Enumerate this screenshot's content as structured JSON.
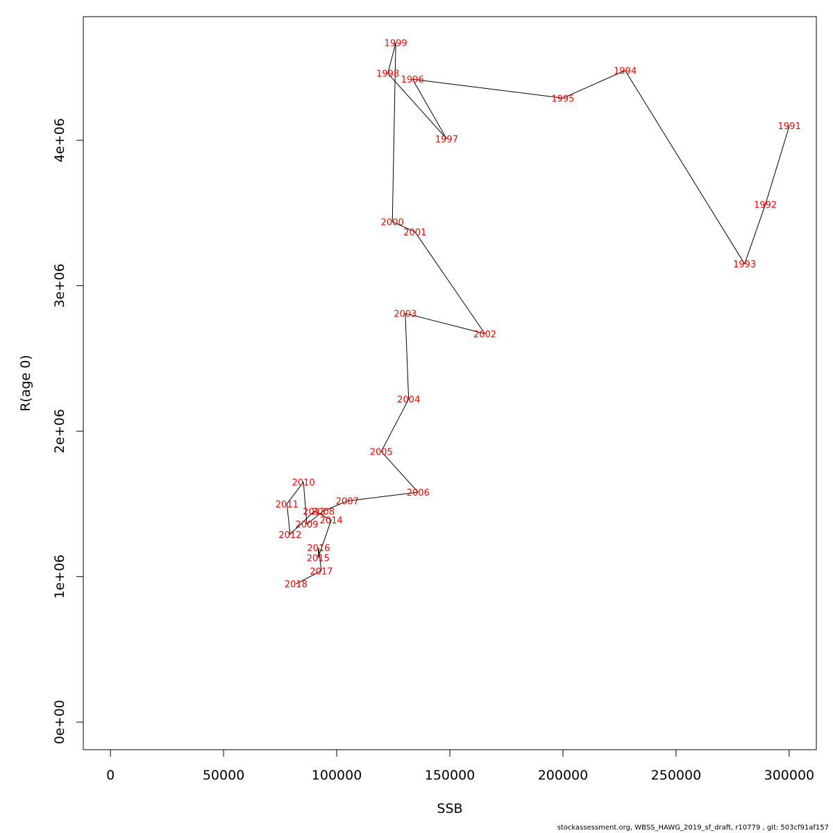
{
  "chart_data": {
    "type": "line",
    "title": "",
    "xlabel": "SSB",
    "ylabel": "R(age 0)",
    "xlim": [
      -12000,
      312000
    ],
    "ylim": [
      -190000,
      4850000
    ],
    "xticks": [
      0,
      50000,
      100000,
      150000,
      200000,
      250000,
      300000
    ],
    "xtick_labels": [
      "0",
      "50000",
      "100000",
      "150000",
      "200000",
      "250000",
      "300000"
    ],
    "yticks": [
      0,
      1000000,
      2000000,
      3000000,
      4000000
    ],
    "ytick_labels": [
      "0e+00",
      "1e+06",
      "2e+06",
      "3e+06",
      "4e+06"
    ],
    "grid": false,
    "line_color": "#000000",
    "label_color": "#ff0000",
    "points": [
      {
        "year": "1991",
        "x": 300100,
        "y": 4100000
      },
      {
        "year": "1992",
        "x": 289500,
        "y": 3560000
      },
      {
        "year": "1993",
        "x": 280300,
        "y": 3150000
      },
      {
        "year": "1994",
        "x": 227500,
        "y": 4480000
      },
      {
        "year": "1995",
        "x": 200000,
        "y": 4290000
      },
      {
        "year": "1996",
        "x": 133500,
        "y": 4420000
      },
      {
        "year": "1997",
        "x": 148600,
        "y": 4010000
      },
      {
        "year": "1998",
        "x": 122600,
        "y": 4460000
      },
      {
        "year": "1999",
        "x": 126100,
        "y": 4670000
      },
      {
        "year": "2000",
        "x": 124600,
        "y": 3440000
      },
      {
        "year": "2001",
        "x": 134600,
        "y": 3370000
      },
      {
        "year": "2002",
        "x": 165500,
        "y": 2670000
      },
      {
        "year": "2003",
        "x": 130300,
        "y": 2810000
      },
      {
        "year": "2004",
        "x": 131800,
        "y": 2220000
      },
      {
        "year": "2005",
        "x": 119700,
        "y": 1860000
      },
      {
        "year": "2006",
        "x": 136000,
        "y": 1580000
      },
      {
        "year": "2007",
        "x": 104700,
        "y": 1520000
      },
      {
        "year": "2008",
        "x": 94000,
        "y": 1450000
      },
      {
        "year": "2009",
        "x": 86800,
        "y": 1360000
      },
      {
        "year": "2010",
        "x": 85300,
        "y": 1650000
      },
      {
        "year": "2011",
        "x": 78000,
        "y": 1500000
      },
      {
        "year": "2012",
        "x": 79400,
        "y": 1290000
      },
      {
        "year": "2013",
        "x": 90100,
        "y": 1450000
      },
      {
        "year": "2014",
        "x": 97600,
        "y": 1390000
      },
      {
        "year": "2015",
        "x": 91800,
        "y": 1130000
      },
      {
        "year": "2016",
        "x": 92000,
        "y": 1200000
      },
      {
        "year": "2017",
        "x": 93200,
        "y": 1040000
      },
      {
        "year": "2018",
        "x": 82000,
        "y": 950000
      }
    ]
  },
  "footer": {
    "text": "stockassessment.org, WBSS_HAWG_2019_sf_draft, r10779 , git: 503cf91af157"
  }
}
